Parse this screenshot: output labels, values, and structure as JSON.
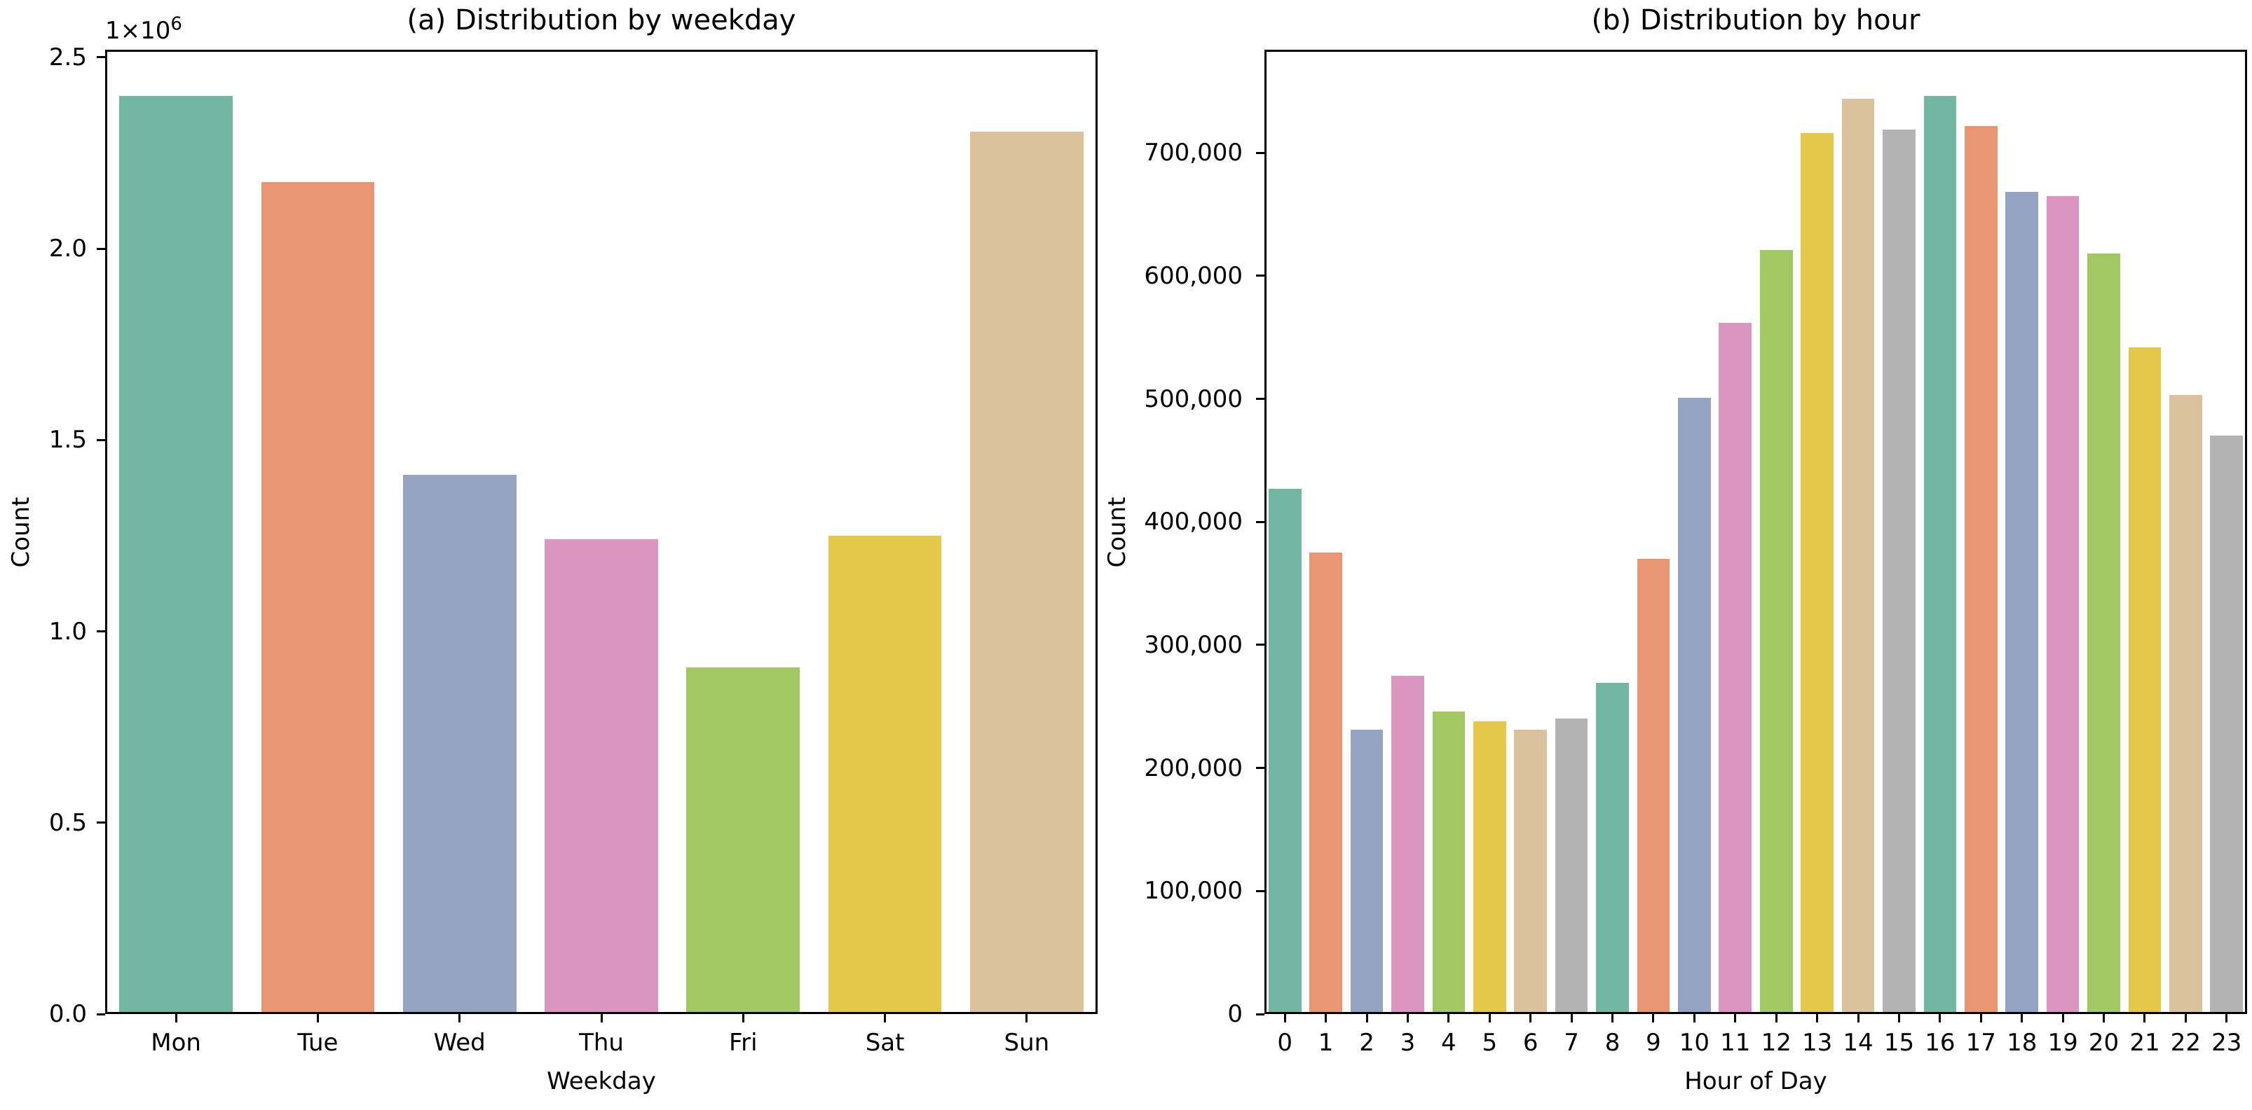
{
  "figure": {
    "background": "#ffffff",
    "text_color": "#000000",
    "spine_color": "#000000"
  },
  "palette": [
    "#71b7a1",
    "#e99675",
    "#95a3c3",
    "#db96c0",
    "#a2c864",
    "#e5c849",
    "#dbc29e",
    "#b3b3b3"
  ],
  "chart_data": [
    {
      "type": "bar",
      "panel": "a",
      "title": "(a) Distribution by weekday",
      "xlabel": "Weekday",
      "ylabel": "Count",
      "categories": [
        "Mon",
        "Tue",
        "Wed",
        "Thu",
        "Fri",
        "Sat",
        "Sun"
      ],
      "values": [
        2400000,
        2175000,
        1410000,
        1240000,
        905000,
        1250000,
        2305000
      ],
      "ylim": [
        0,
        2520000
      ],
      "yticks": [
        0,
        500000,
        1000000,
        1500000,
        2000000,
        2500000
      ],
      "ytick_labels": [
        "0.0",
        "0.5",
        "1.0",
        "1.5",
        "2.0",
        "2.5"
      ],
      "y_offset": {
        "base": "1×10",
        "exponent": "6"
      },
      "grid": false,
      "legend": null
    },
    {
      "type": "bar",
      "panel": "b",
      "title": "(b) Distribution by hour",
      "xlabel": "Hour of Day",
      "ylabel": "Count",
      "categories": [
        "0",
        "1",
        "2",
        "3",
        "4",
        "5",
        "6",
        "7",
        "8",
        "9",
        "10",
        "11",
        "12",
        "13",
        "14",
        "15",
        "16",
        "17",
        "18",
        "19",
        "20",
        "21",
        "22",
        "23"
      ],
      "values": [
        427000,
        375000,
        231000,
        275000,
        246000,
        238000,
        231000,
        240000,
        269000,
        370000,
        501000,
        562000,
        621000,
        716000,
        744000,
        719000,
        746000,
        722000,
        668000,
        665000,
        618000,
        542000,
        503000,
        470000
      ],
      "ylim": [
        0,
        783800
      ],
      "yticks": [
        0,
        100000,
        200000,
        300000,
        400000,
        500000,
        600000,
        700000
      ],
      "ytick_labels": [
        "0",
        "100,000",
        "200,000",
        "300,000",
        "400,000",
        "500,000",
        "600,000",
        "700,000"
      ],
      "y_offset": null,
      "grid": false,
      "legend": null
    }
  ]
}
